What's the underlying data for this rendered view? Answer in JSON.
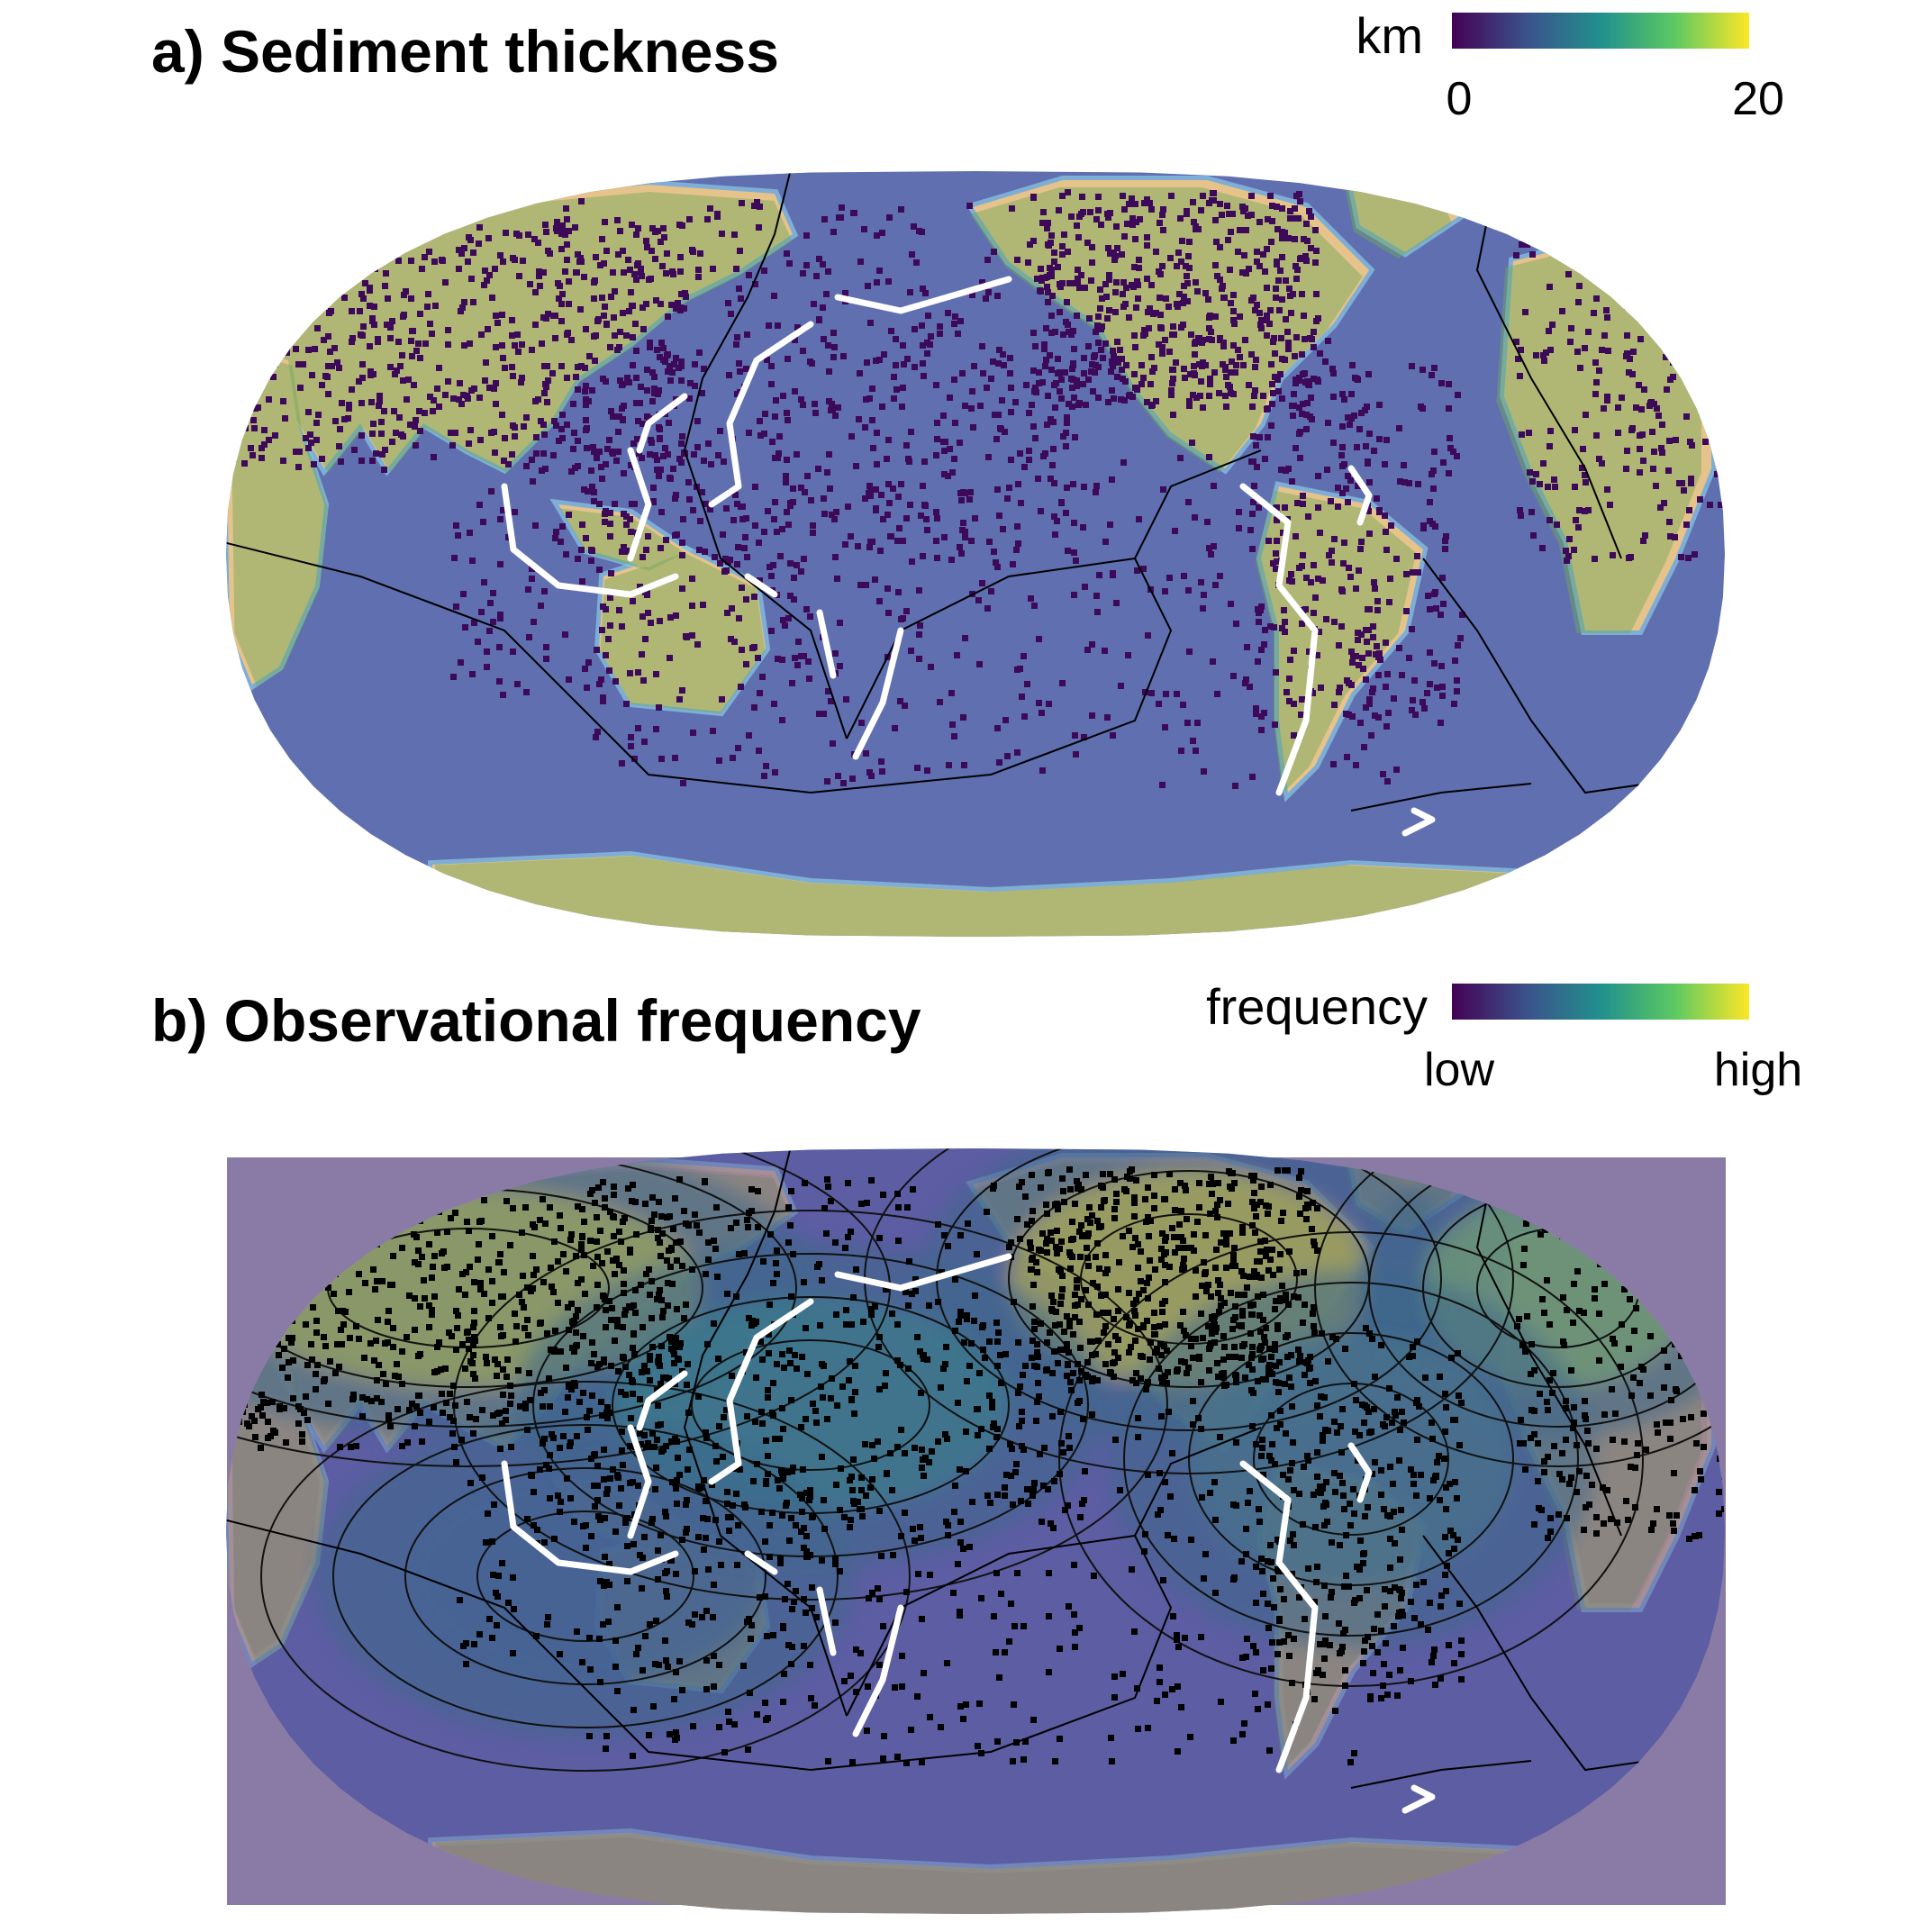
{
  "panel_a": {
    "title": "a) Sediment thickness",
    "legend": {
      "title": "km",
      "min_label": "0",
      "max_label": "20",
      "colors": [
        "#440154",
        "#3b528b",
        "#21908d",
        "#5dc962",
        "#fde725"
      ]
    }
  },
  "panel_b": {
    "title": "b) Observational frequency",
    "legend": {
      "title": "frequency",
      "min_label": "low",
      "max_label": "high",
      "colors": [
        "#440154",
        "#3b528b",
        "#21908d",
        "#5dc962",
        "#fde725"
      ]
    }
  },
  "colors": {
    "ocean": "#5f6fb0",
    "ocean_light": "#8bc9e6",
    "land_sand": "#e6c38a",
    "land_green": "#6fa85a",
    "sediment_points": "#3d0a5a",
    "frequency_overlay": "#6b4e9a",
    "plate_boundaries": "#000000",
    "subduction_zones": "#ffffff"
  }
}
